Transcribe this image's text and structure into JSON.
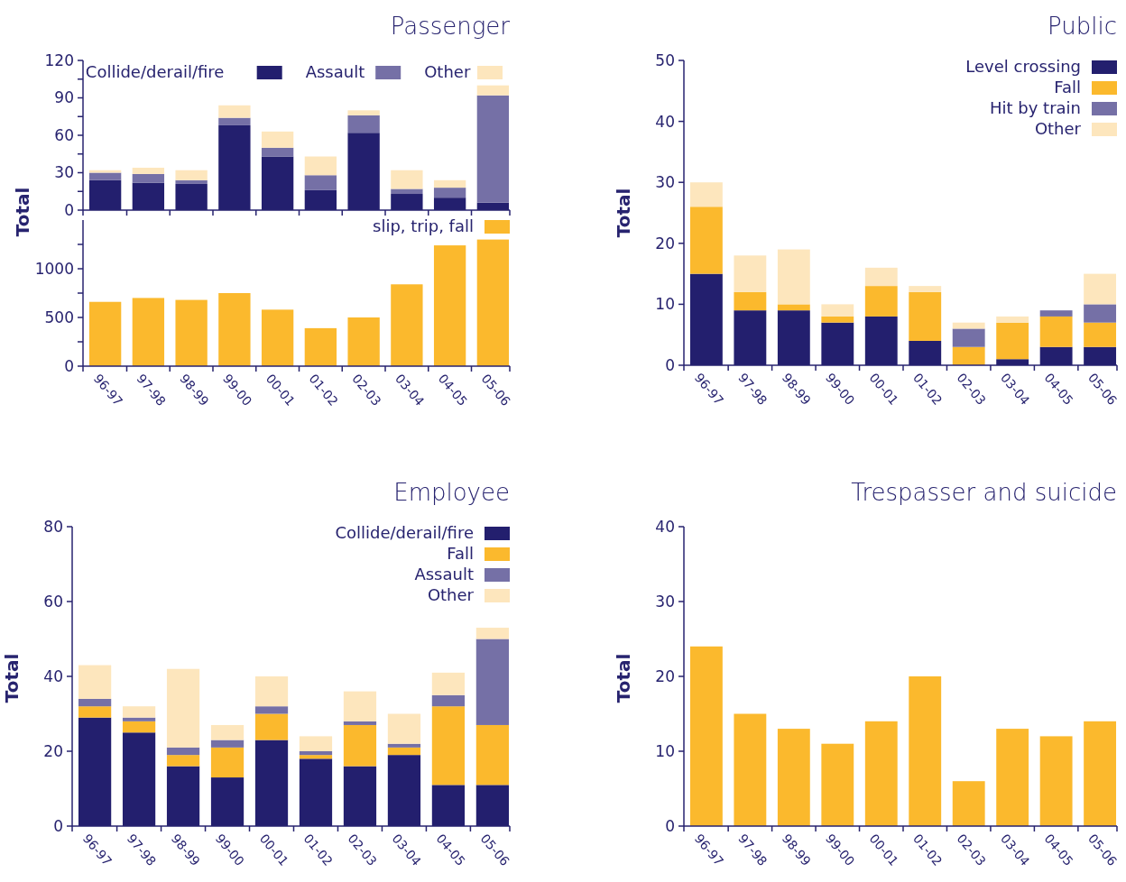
{
  "chart_data": [
    {
      "type": "bar",
      "title": "Passenger",
      "ylabel": "Total",
      "stacked": true,
      "legend": "top",
      "tick_labels": "y",
      "categories": [
        null,
        null,
        null,
        null,
        null,
        null,
        null,
        null,
        null,
        null
      ],
      "ylim": [
        0,
        120
      ],
      "yticks": [
        0,
        {
          "value": 15,
          "label": null
        },
        30,
        {
          "value": 45,
          "label": null
        },
        60,
        {
          "value": 75,
          "label": null
        },
        90,
        {
          "value": 105,
          "label": null
        },
        120
      ],
      "series": [
        {
          "name": "Collide/derail/fire",
          "color": "#231f6e",
          "values": [
            24,
            22,
            21,
            68,
            43,
            16,
            62,
            13,
            10,
            6
          ]
        },
        {
          "name": "Assault",
          "color": "#7570a6",
          "values": [
            6,
            7,
            3,
            6,
            7,
            12,
            14,
            4,
            8,
            86
          ]
        },
        {
          "name": "Other",
          "color": "#fde6bd",
          "values": [
            2,
            5,
            8,
            10,
            13,
            15,
            4,
            15,
            6,
            8
          ]
        }
      ]
    },
    {
      "type": "bar",
      "legend": "top right",
      "categories": [
        "96-97",
        "97-98",
        "98-99",
        "99-00",
        "00-01",
        "01-02",
        "02-03",
        "03-04",
        "04-05",
        "05-06"
      ],
      "ylim": [
        0,
        1500
      ],
      "yticks": [
        0,
        {
          "value": 250,
          "label": null
        },
        500,
        {
          "value": 750,
          "label": null
        },
        1000,
        {
          "value": 1250,
          "label": null
        }
      ],
      "series": [
        {
          "name": "slip, trip, fall",
          "color": "#fbb92d",
          "values": [
            660,
            700,
            680,
            750,
            580,
            390,
            500,
            840,
            1240,
            1300
          ]
        }
      ]
    },
    {
      "type": "bar",
      "title": "Public",
      "ylabel": "Total",
      "stacked": true,
      "legend": "top right",
      "categories": [
        "96-97",
        "97-98",
        "98-99",
        "99-00",
        "00-01",
        "01-02",
        "02-03",
        "03-04",
        "04-05",
        "05-06"
      ],
      "ylim": [
        0,
        50
      ],
      "yticks": [
        0,
        10,
        20,
        30,
        40,
        50
      ],
      "series": [
        {
          "name": "Level crossing",
          "color": "#231f6e",
          "values": [
            15,
            9,
            9,
            7,
            8,
            4,
            0,
            1,
            3,
            3
          ]
        },
        {
          "name": "Fall",
          "color": "#fbb92d",
          "values": [
            11,
            3,
            1,
            1,
            5,
            8,
            3,
            6,
            5,
            4
          ]
        },
        {
          "name": "Hit by train",
          "color": "#7570a6",
          "values": [
            0,
            0,
            0,
            0,
            0,
            0,
            3,
            0,
            1,
            3
          ]
        },
        {
          "name": "Other",
          "color": "#fde6bd",
          "values": [
            4,
            6,
            9,
            2,
            3,
            1,
            1,
            1,
            0,
            5
          ]
        }
      ]
    },
    {
      "type": "bar",
      "title": "Employee",
      "ylabel": "Total",
      "stacked": true,
      "legend": "top right",
      "categories": [
        "96-97",
        "97-98",
        "98-99",
        "99-00",
        "00-01",
        "01-02",
        "02-03",
        "03-04",
        "04-05",
        "05-06"
      ],
      "ylim": [
        0,
        80
      ],
      "yticks": [
        0,
        20,
        40,
        60,
        80
      ],
      "series": [
        {
          "name": "Collide/derail/fire",
          "color": "#231f6e",
          "values": [
            29,
            25,
            16,
            13,
            23,
            18,
            16,
            19,
            11,
            11
          ]
        },
        {
          "name": "Fall",
          "color": "#fbb92d",
          "values": [
            3,
            3,
            3,
            8,
            7,
            1,
            11,
            2,
            21,
            16
          ]
        },
        {
          "name": "Assault",
          "color": "#7570a6",
          "values": [
            2,
            1,
            2,
            2,
            2,
            1,
            1,
            1,
            3,
            23
          ]
        },
        {
          "name": "Other",
          "color": "#fde6bd",
          "values": [
            9,
            3,
            21,
            4,
            8,
            4,
            8,
            8,
            6,
            3
          ]
        }
      ]
    },
    {
      "type": "bar",
      "title": "Trespasser and suicide",
      "ylabel": "Total",
      "categories": [
        "96-97",
        "97-98",
        "98-99",
        "99-00",
        "00-01",
        "01-02",
        "02-03",
        "03-04",
        "04-05",
        "05-06"
      ],
      "ylim": [
        0,
        40
      ],
      "yticks": [
        0,
        10,
        20,
        30,
        40
      ],
      "color": "#fbb92d",
      "values": [
        24,
        15,
        13,
        11,
        14,
        20,
        6,
        13,
        12,
        14
      ]
    }
  ]
}
